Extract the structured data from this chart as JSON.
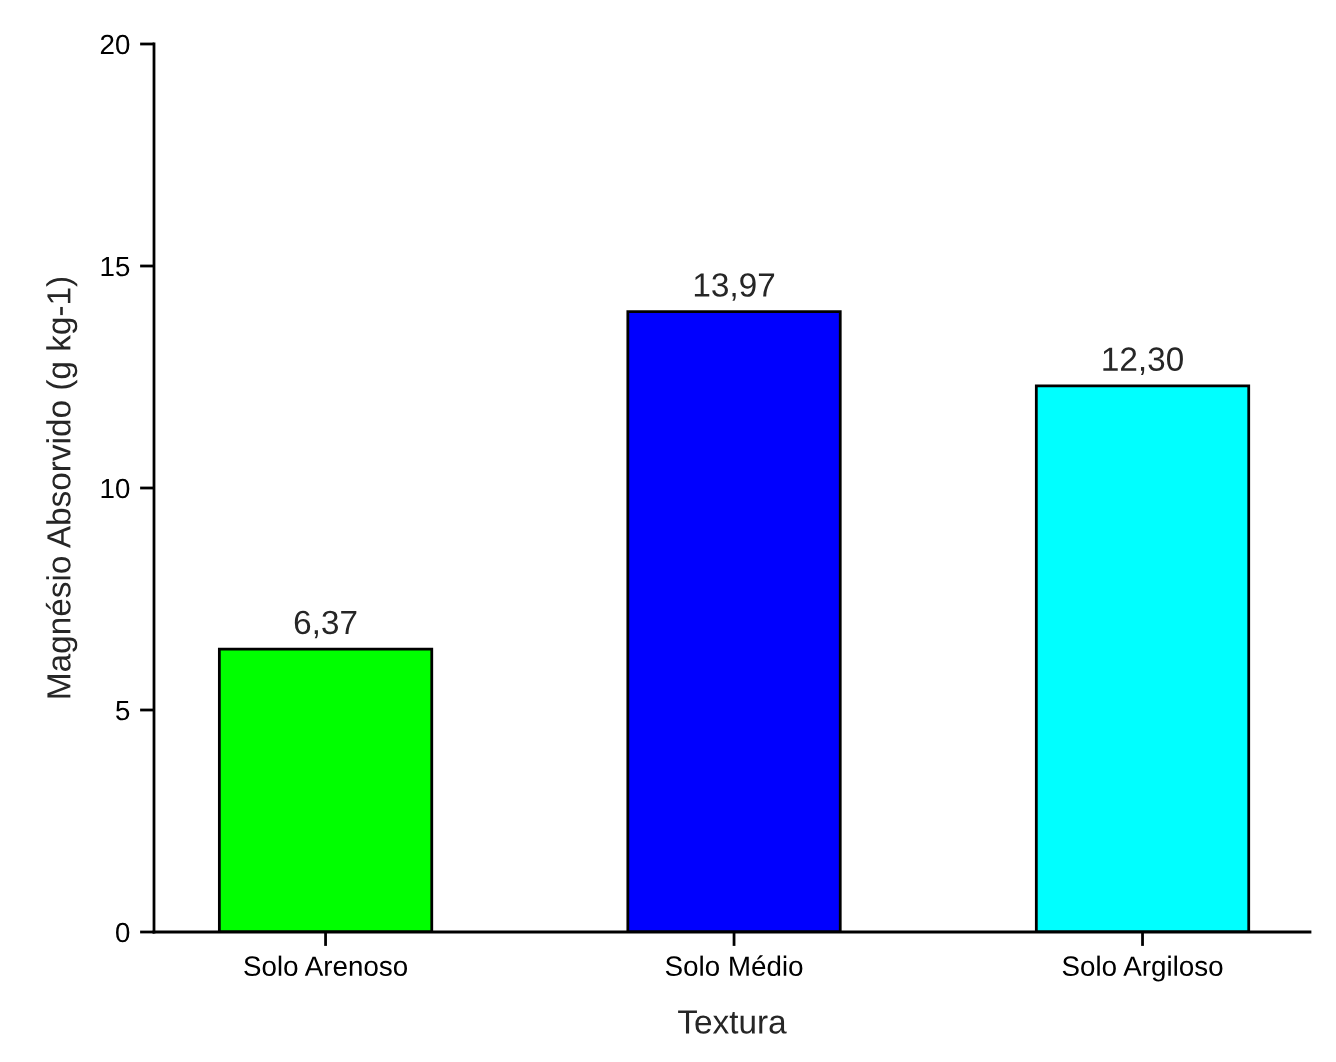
{
  "chart_data": {
    "type": "bar",
    "xlabel": "Textura",
    "ylabel": "Magnésio Absorvido (g kg-1)",
    "categories": [
      "Solo Arenoso",
      "Solo Médio",
      "Solo Argiloso"
    ],
    "values": [
      6.37,
      13.97,
      12.3
    ],
    "colors": [
      "#00ff00",
      "#0000ff",
      "#00ffff"
    ],
    "value_labels": [
      "6,37",
      "13,97",
      "12,30"
    ],
    "ylim": [
      0,
      20
    ],
    "yticks": [
      0,
      5,
      10,
      15,
      20
    ],
    "grid": false
  }
}
